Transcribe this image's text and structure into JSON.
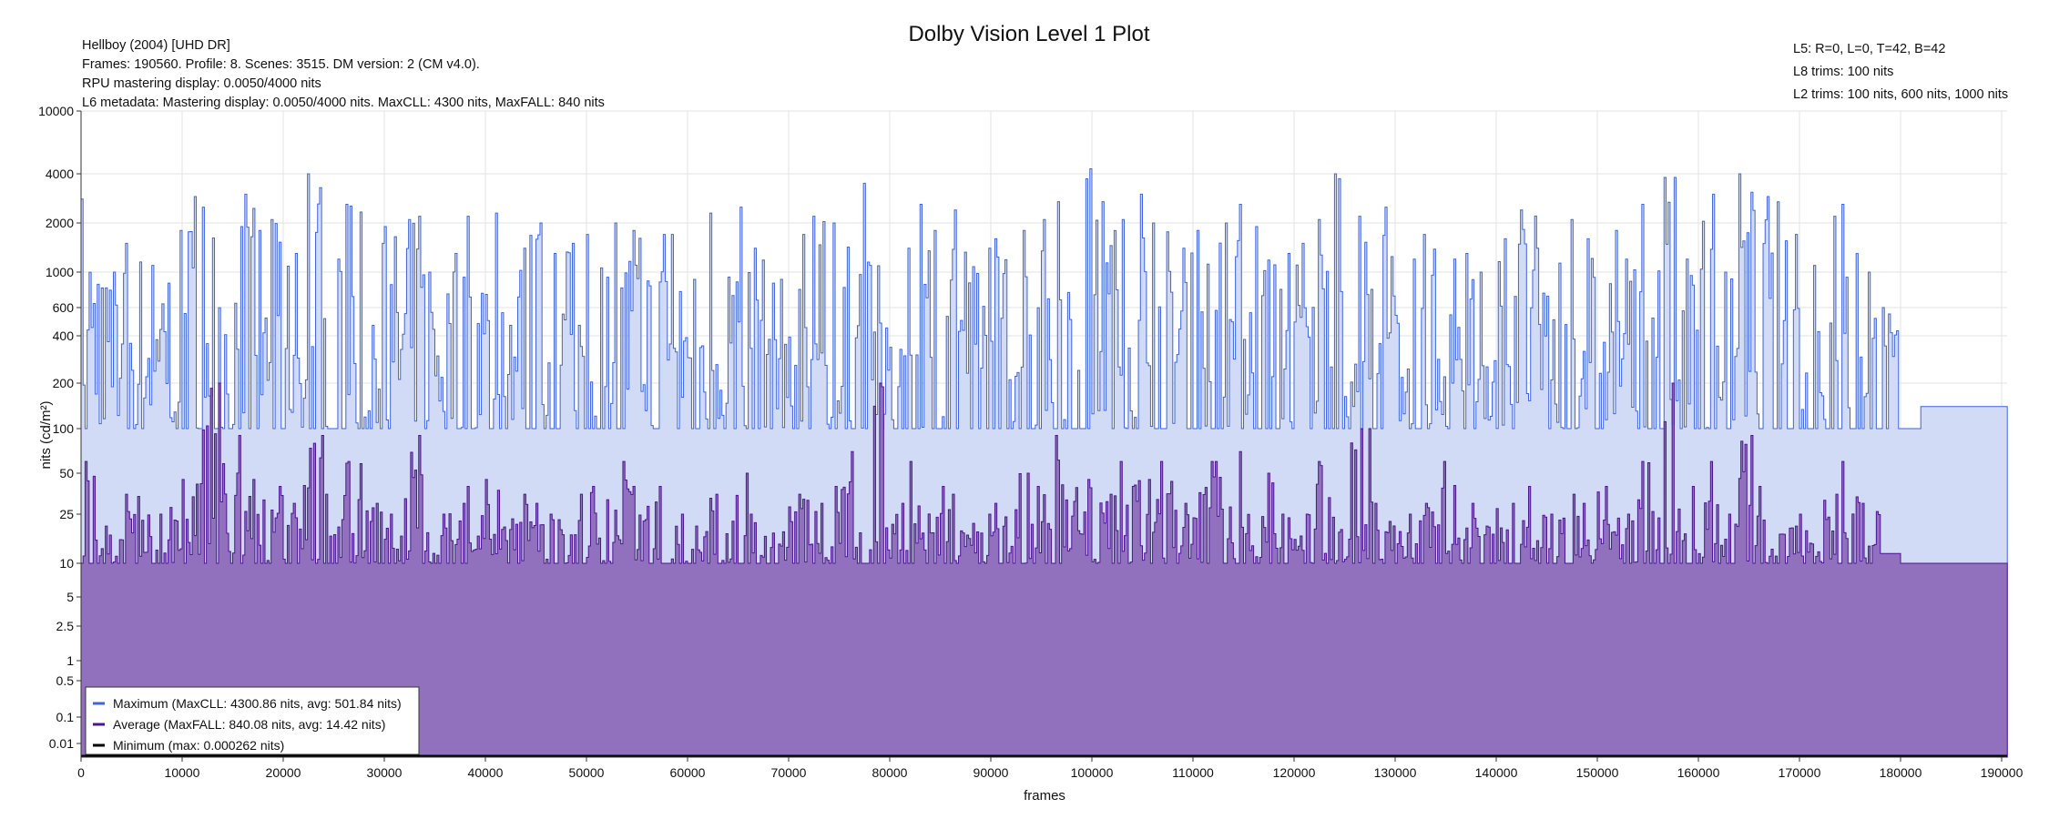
{
  "chart_data": {
    "type": "area",
    "title": "Dolby Vision Level 1 Plot",
    "info_left": [
      "Hellboy (2004) [UHD DR]",
      "Frames: 190560. Profile: 8. Scenes: 3515. DM version: 2 (CM v4.0).",
      "RPU mastering display: 0.0050/4000 nits",
      "L6 metadata: Mastering display: 0.0050/4000 nits. MaxCLL: 4300 nits, MaxFALL: 840 nits"
    ],
    "info_right": [
      "L5: R=0, L=0, T=42, B=42",
      "L8 trims: 100 nits",
      "L2 trims: 100 nits, 600 nits, 1000 nits"
    ],
    "xlabel": "frames",
    "ylabel": "nits (cd/m²)",
    "xlim": [
      0,
      190560
    ],
    "x_ticks": [
      0,
      10000,
      20000,
      30000,
      40000,
      50000,
      60000,
      70000,
      80000,
      90000,
      100000,
      110000,
      120000,
      130000,
      140000,
      150000,
      160000,
      170000,
      180000,
      190000
    ],
    "y_ticks": [
      10000,
      4000,
      2000,
      1000,
      600,
      400,
      200,
      100,
      50,
      25,
      10,
      5,
      2.5,
      1,
      0.5,
      0.1,
      0.01
    ],
    "y_tick_labels": [
      "10000",
      "4000",
      "2000",
      "1000",
      "600",
      "400",
      "200",
      "100",
      "50",
      "25",
      "10",
      "5",
      "2.5",
      "1",
      "0.5",
      "0.1",
      "0.01"
    ],
    "grid": true,
    "legend_position": "bottom-left",
    "bin_frames": 2000,
    "series": [
      {
        "name": "Maximum (MaxCLL: 4300.86 nits, avg: 501.84 nits)",
        "color": "#3c64dc",
        "fill": "#d0d9f6",
        "floor": 100,
        "values": [
          2800,
          1000,
          1500,
          1100,
          1800,
          2900,
          2500,
          1900,
          3000,
          2100,
          1300,
          4000,
          1200,
          2600,
          1500,
          1900,
          2200,
          1000,
          1300,
          2200,
          2300,
          1400,
          2000,
          1300,
          1500,
          1700,
          2000,
          1800,
          1700,
          1700,
          900,
          2300,
          2500,
          1400,
          900,
          1700,
          2200,
          2000,
          3500,
          1100,
          1400,
          2600,
          1800,
          2400,
          1400,
          1600,
          1800,
          2100,
          2700,
          4300,
          2700,
          2100,
          3000,
          2000,
          1400,
          1800,
          2000,
          2600,
          1900,
          1300,
          1500,
          2100,
          4000,
          2200,
          2500,
          1200,
          1700,
          1200,
          1300,
          1000,
          1600,
          2400,
          1400,
          2100,
          1600,
          1800,
          1200,
          2600,
          3800,
          1200,
          3000,
          1000,
          4000,
          2900,
          1700,
          1100,
          2200,
          2600,
          1000,
          600,
          100,
          140,
          140,
          140,
          140,
          140
        ]
      },
      {
        "name": "Average (MaxFALL: 840.08 nits, avg: 14.42 nits)",
        "color": "#4a1590",
        "fill": "#8d6cbb",
        "floor": 10,
        "values": [
          60,
          20,
          35,
          25,
          28,
          45,
          200,
          90,
          45,
          40,
          30,
          90,
          35,
          60,
          30,
          25,
          90,
          25,
          30,
          40,
          45,
          35,
          30,
          25,
          35,
          40,
          60,
          40,
          40,
          25,
          20,
          35,
          50,
          25,
          18,
          35,
          30,
          40,
          70,
          200,
          30,
          60,
          40,
          35,
          25,
          30,
          50,
          40,
          90,
          45,
          35,
          60,
          45,
          60,
          30,
          60,
          60,
          70,
          50,
          25,
          25,
          60,
          80,
          100,
          30,
          25,
          30,
          60,
          30,
          20,
          30,
          40,
          25,
          35,
          30,
          40,
          25,
          60,
          200,
          40,
          60,
          25,
          90,
          40,
          20,
          25,
          35,
          60,
          30,
          12,
          10,
          10,
          10,
          10,
          10,
          10
        ]
      },
      {
        "name": "Minimum (max: 0.000262 nits)",
        "color": "#000000",
        "max": 0.000262
      }
    ]
  }
}
